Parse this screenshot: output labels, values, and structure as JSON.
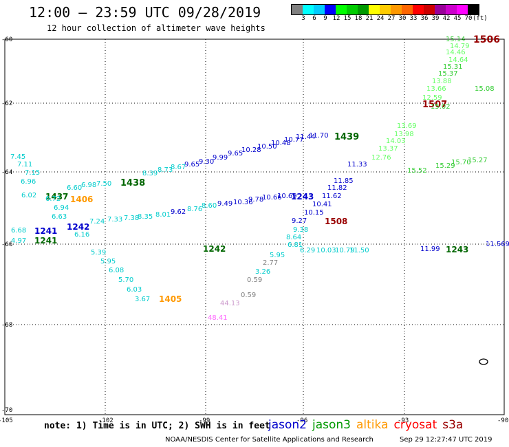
{
  "header": {
    "title": "12:00 – 23:59 UTC 09/28/2019",
    "subtitle": "12 hour collection of altimeter wave heights"
  },
  "legend": {
    "colors": [
      "#808080",
      "#00ffff",
      "#00ccff",
      "#0000ff",
      "#00ff00",
      "#00cc00",
      "#009900",
      "#ffff00",
      "#ffcc00",
      "#ff9900",
      "#ff6600",
      "#ff0000",
      "#cc0000",
      "#990099",
      "#cc00cc",
      "#ff00ff",
      "#000000"
    ],
    "labels": [
      "3",
      "6",
      "9",
      "12",
      "15",
      "18",
      "21",
      "24",
      "27",
      "30",
      "33",
      "36",
      "39",
      "42",
      "45",
      "70",
      "(ft)"
    ]
  },
  "axes": {
    "lat_labels": [
      "-60",
      "-62",
      "-64",
      "-66",
      "-68",
      "-70"
    ],
    "lon_labels": [
      "-105",
      "-102",
      "-99",
      "-96",
      "-93",
      "-90"
    ]
  },
  "footer": {
    "note": "note: 1) Time is in UTC; 2) SWH is in feet",
    "satellites": [
      {
        "name": "jason2",
        "color": "#0000cc"
      },
      {
        "name": "jason3",
        "color": "#009900"
      },
      {
        "name": "altika",
        "color": "#ff9900"
      },
      {
        "name": "cryosat",
        "color": "#ff0000"
      },
      {
        "name": "s3a",
        "color": "#990000"
      }
    ],
    "credit": "NOAA/NESDIS Center for Satellite Applications and Research",
    "timestamp": "Sep 29 12:27:47 UTC 2019"
  },
  "time_labels": [
    {
      "text": "1506",
      "color": "#990000"
    },
    {
      "text": "1507",
      "color": "#990000"
    },
    {
      "text": "1439",
      "color": "#006600"
    },
    {
      "text": "1438",
      "color": "#006600"
    },
    {
      "text": "1437",
      "color": "#006600"
    },
    {
      "text": "1406",
      "color": "#ff9900"
    },
    {
      "text": "1508",
      "color": "#990000"
    },
    {
      "text": "1243",
      "color": "#0000cc"
    },
    {
      "text": "1241",
      "color": "#0000cc"
    },
    {
      "text": "1242",
      "color": "#0000cc"
    },
    {
      "text": "1241",
      "color": "#006600"
    },
    {
      "text": "1242",
      "color": "#006600"
    },
    {
      "text": "1243",
      "color": "#006600"
    },
    {
      "text": "1405",
      "color": "#ff9900"
    }
  ],
  "swh_values": [
    {
      "text": "15.14",
      "color": "#33cc33"
    },
    {
      "text": "14.79",
      "color": "#66ff66"
    },
    {
      "text": "14.46",
      "color": "#66ff66"
    },
    {
      "text": "14.64",
      "color": "#66ff66"
    },
    {
      "text": "15.31",
      "color": "#33cc33"
    },
    {
      "text": "15.37",
      "color": "#33cc33"
    },
    {
      "text": "13.88",
      "color": "#66ff66"
    },
    {
      "text": "13.66",
      "color": "#66ff66"
    },
    {
      "text": "12.59",
      "color": "#66ff66"
    },
    {
      "text": "15.08",
      "color": "#33cc33"
    },
    {
      "text": "15.02",
      "color": "#33cc33"
    },
    {
      "text": "13.69",
      "color": "#66ff66"
    },
    {
      "text": "13.98",
      "color": "#66ff66"
    },
    {
      "text": "14.03",
      "color": "#66ff66"
    },
    {
      "text": "13.37",
      "color": "#66ff66"
    },
    {
      "text": "12.76",
      "color": "#66ff66"
    },
    {
      "text": "11.33",
      "color": "#0000cc"
    },
    {
      "text": "11.85",
      "color": "#0000cc"
    },
    {
      "text": "11.82",
      "color": "#0000cc"
    },
    {
      "text": "11.62",
      "color": "#0000cc"
    },
    {
      "text": "10.41",
      "color": "#0000cc"
    },
    {
      "text": "10.15",
      "color": "#0000cc"
    },
    {
      "text": "9.27",
      "color": "#0000cc"
    },
    {
      "text": "9.38",
      "color": "#00cccc"
    },
    {
      "text": "8.64",
      "color": "#00cccc"
    },
    {
      "text": "15.52",
      "color": "#33cc33"
    },
    {
      "text": "15.29",
      "color": "#33cc33"
    },
    {
      "text": "15.70",
      "color": "#33cc33"
    },
    {
      "text": "15.27",
      "color": "#33cc33"
    },
    {
      "text": "11.569",
      "color": "#0000cc"
    },
    {
      "text": "11.99",
      "color": "#0000cc"
    },
    {
      "text": "7.45",
      "color": "#00cccc"
    },
    {
      "text": "7.11",
      "color": "#00cccc"
    },
    {
      "text": "7.15",
      "color": "#00cccc"
    },
    {
      "text": "6.96",
      "color": "#00cccc"
    },
    {
      "text": "6.02",
      "color": "#00cccc"
    },
    {
      "text": "6.72",
      "color": "#00cccc"
    },
    {
      "text": "6.94",
      "color": "#00cccc"
    },
    {
      "text": "6.63",
      "color": "#00cccc"
    },
    {
      "text": "6.16",
      "color": "#00cccc"
    },
    {
      "text": "6.68",
      "color": "#00cccc"
    },
    {
      "text": "4.97",
      "color": "#00cccc"
    },
    {
      "text": "5.39",
      "color": "#00cccc"
    },
    {
      "text": "5.95",
      "color": "#00cccc"
    },
    {
      "text": "6.08",
      "color": "#00cccc"
    },
    {
      "text": "5.70",
      "color": "#00cccc"
    },
    {
      "text": "6.03",
      "color": "#00cccc"
    },
    {
      "text": "3.67",
      "color": "#00cccc"
    },
    {
      "text": "7.50",
      "color": "#00cccc"
    },
    {
      "text": "6.98",
      "color": "#00cccc"
    },
    {
      "text": "6.60",
      "color": "#00cccc"
    },
    {
      "text": "8.39",
      "color": "#00cccc"
    },
    {
      "text": "8.73",
      "color": "#00cccc"
    },
    {
      "text": "8.67",
      "color": "#00cccc"
    },
    {
      "text": "9.65",
      "color": "#0000cc"
    },
    {
      "text": "9.30",
      "color": "#0000cc"
    },
    {
      "text": "9.99",
      "color": "#0000cc"
    },
    {
      "text": "9.65",
      "color": "#0000cc"
    },
    {
      "text": "10.28",
      "color": "#0000cc"
    },
    {
      "text": "10.50",
      "color": "#0000cc"
    },
    {
      "text": "10.48",
      "color": "#0000cc"
    },
    {
      "text": "10.77",
      "color": "#0000cc"
    },
    {
      "text": "11.44",
      "color": "#0000cc"
    },
    {
      "text": "11.70",
      "color": "#0000cc"
    },
    {
      "text": "7.24",
      "color": "#00cccc"
    },
    {
      "text": "7.33",
      "color": "#00cccc"
    },
    {
      "text": "7.38",
      "color": "#00cccc"
    },
    {
      "text": "8.35",
      "color": "#00cccc"
    },
    {
      "text": "8.01",
      "color": "#00cccc"
    },
    {
      "text": "9.62",
      "color": "#0000cc"
    },
    {
      "text": "8.76",
      "color": "#00cccc"
    },
    {
      "text": "8.60",
      "color": "#00cccc"
    },
    {
      "text": "9.49",
      "color": "#0000cc"
    },
    {
      "text": "10.36",
      "color": "#0000cc"
    },
    {
      "text": "9.78",
      "color": "#0000cc"
    },
    {
      "text": "10.66",
      "color": "#0000cc"
    },
    {
      "text": "10.69",
      "color": "#0000cc"
    },
    {
      "text": "10.03",
      "color": "#00cccc"
    },
    {
      "text": "10.79",
      "color": "#00cccc"
    },
    {
      "text": "11.50",
      "color": "#00cccc"
    },
    {
      "text": "2.77",
      "color": "#808080"
    },
    {
      "text": "3.26",
      "color": "#00cccc"
    },
    {
      "text": "0.59",
      "color": "#808080"
    },
    {
      "text": "0.59",
      "color": "#808080"
    },
    {
      "text": "44.13",
      "color": "#cc99cc"
    },
    {
      "text": "48.41",
      "color": "#ff66ff"
    },
    {
      "text": "6.81",
      "color": "#00cccc"
    },
    {
      "text": "5.95",
      "color": "#00cccc"
    },
    {
      "text": "6.29",
      "color": "#00cccc"
    }
  ]
}
